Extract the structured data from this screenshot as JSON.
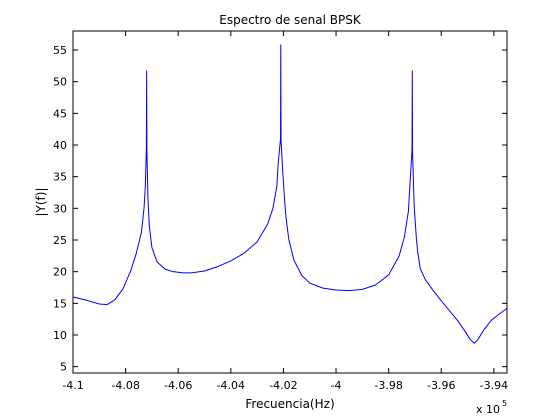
{
  "chart_data": {
    "type": "line",
    "title": "Espectro de senal BPSK",
    "xlabel": "Frecuencia(Hz)",
    "ylabel": "|Y(f)|",
    "x_multiplier": "x 10",
    "x_multiplier_exponent": "5",
    "xlim": [
      -4.1,
      -3.935
    ],
    "ylim": [
      4,
      58
    ],
    "xticks": [
      "-4.1",
      "-4.08",
      "-4.06",
      "-4.04",
      "-4.02",
      "-4",
      "-3.98",
      "-3.96",
      "-3.94"
    ],
    "xtick_values": [
      -4.1,
      -4.08,
      -4.06,
      -4.04,
      -4.02,
      -4.0,
      -3.98,
      -3.96,
      -3.94
    ],
    "yticks": [
      "5",
      "10",
      "15",
      "20",
      "25",
      "30",
      "35",
      "40",
      "45",
      "50",
      "55"
    ],
    "ytick_values": [
      5,
      10,
      15,
      20,
      25,
      30,
      35,
      40,
      45,
      50,
      55
    ],
    "grid": false,
    "line_color": "#0000ff",
    "series": [
      {
        "x": [
          -4.1,
          -4.095,
          -4.09,
          -4.087,
          -4.084,
          -4.081,
          -4.078,
          -4.076,
          -4.074,
          -4.073,
          -4.0725,
          -4.0721,
          -4.072,
          -4.0719,
          -4.0715,
          -4.071,
          -4.07,
          -4.068,
          -4.065,
          -4.062,
          -4.058,
          -4.055,
          -4.05,
          -4.045,
          -4.04,
          -4.035,
          -4.03,
          -4.026,
          -4.024,
          -4.0225,
          -4.022,
          -4.0211,
          -4.021,
          -4.0209,
          -4.0203,
          -4.0195,
          -4.019,
          -4.018,
          -4.016,
          -4.013,
          -4.01,
          -4.005,
          -4.0,
          -3.995,
          -3.99,
          -3.985,
          -3.98,
          -3.976,
          -3.974,
          -3.9725,
          -3.972,
          -3.9711,
          -3.971,
          -3.9709,
          -3.9703,
          -3.9695,
          -3.969,
          -3.968,
          -3.966,
          -3.963,
          -3.96,
          -3.957,
          -3.954,
          -3.951,
          -3.949,
          -3.9475,
          -3.946,
          -3.944,
          -3.941,
          -3.938,
          -3.935
        ],
        "y": [
          16.0,
          15.5,
          14.9,
          14.8,
          15.6,
          17.3,
          20.2,
          22.8,
          26.2,
          30.0,
          33.5,
          39.5,
          51.7,
          39.0,
          31.5,
          27.3,
          23.8,
          21.5,
          20.4,
          20.0,
          19.8,
          19.8,
          20.1,
          20.8,
          21.7,
          22.9,
          24.7,
          27.5,
          30.0,
          33.5,
          37.0,
          41.0,
          55.8,
          40.8,
          36.0,
          31.0,
          28.5,
          25.2,
          21.8,
          19.4,
          18.2,
          17.4,
          17.1,
          17.0,
          17.2,
          17.9,
          19.5,
          22.5,
          25.5,
          29.5,
          33.0,
          39.3,
          51.7,
          38.8,
          30.5,
          25.5,
          23.3,
          20.5,
          18.7,
          17.0,
          15.4,
          13.9,
          12.4,
          10.6,
          9.3,
          8.7,
          9.3,
          10.7,
          12.3,
          13.3,
          14.2
        ]
      }
    ]
  }
}
